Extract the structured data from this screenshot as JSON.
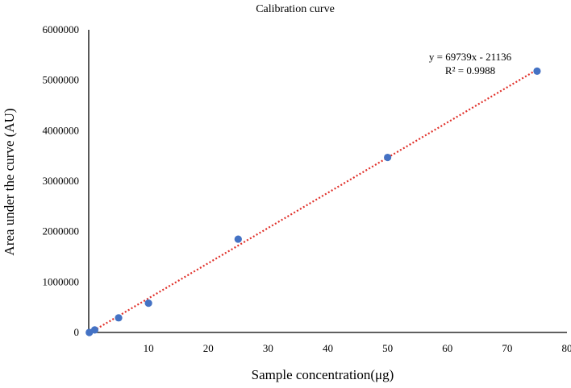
{
  "chart_data": {
    "type": "scatter",
    "title": "Calibration curve",
    "xlabel": "Sample concentration(μg)",
    "ylabel": "Area under the curve (AU)",
    "xlim": [
      0,
      80
    ],
    "ylim": [
      0,
      6000000
    ],
    "xticks": [
      10,
      20,
      30,
      40,
      50,
      60,
      70,
      80
    ],
    "yticks": [
      0,
      1000000,
      2000000,
      3000000,
      4000000,
      5000000,
      6000000
    ],
    "xtick_labels": [
      "10",
      "20",
      "30",
      "40",
      "50",
      "60",
      "70",
      "80"
    ],
    "ytick_labels": [
      "0",
      "1000000",
      "2000000",
      "3000000",
      "4000000",
      "5000000",
      "6000000"
    ],
    "grid": false,
    "legend": "none",
    "series": [
      {
        "points": [
          {
            "x": 0.1,
            "y": 0
          },
          {
            "x": 1,
            "y": 50000
          },
          {
            "x": 5,
            "y": 290000
          },
          {
            "x": 10,
            "y": 580000
          },
          {
            "x": 25,
            "y": 1850000
          },
          {
            "x": 50,
            "y": 3470000
          },
          {
            "x": 75,
            "y": 5180000
          }
        ],
        "color": "#4472c4"
      }
    ],
    "trendline": {
      "type": "linear",
      "slope": 69739,
      "intercept": -21136,
      "x_range": [
        0,
        75
      ],
      "color": "#e0302a",
      "style": "dotted",
      "equation_label": "y = 69739x - 21136",
      "r2_label": "R² = 0.9988"
    }
  }
}
